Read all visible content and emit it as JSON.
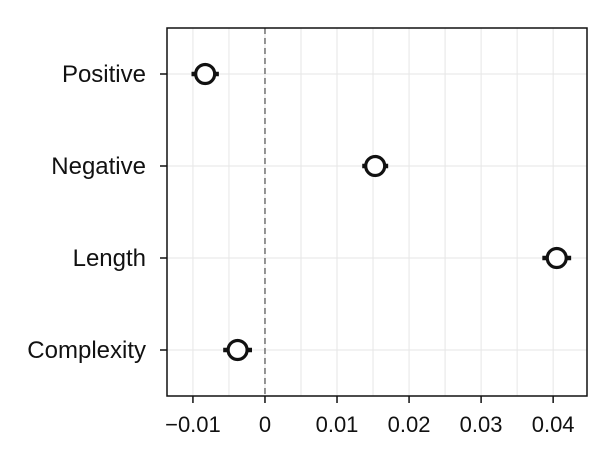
{
  "chart_data": {
    "type": "scatter",
    "orientation": "horizontal",
    "categories": [
      "Positive",
      "Negative",
      "Length",
      "Complexity"
    ],
    "series": [
      {
        "values": [
          -0.0083,
          0.0153,
          0.0405,
          -0.0038
        ],
        "ci_low": [
          -0.0102,
          0.0135,
          0.0385,
          -0.0058
        ],
        "ci_high": [
          -0.0064,
          0.0171,
          0.0425,
          -0.0018
        ]
      }
    ],
    "xticks": [
      -0.01,
      0,
      0.01,
      0.02,
      0.03,
      0.04
    ],
    "xtick_labels": [
      "−0.01",
      "0",
      "0.01",
      "0.02",
      "0.03",
      "0.04"
    ],
    "xlim": [
      -0.0136,
      0.0447
    ],
    "reference_line": 0,
    "grid": true,
    "marker": "open-circle",
    "xlabel": "",
    "ylabel": "",
    "title": ""
  }
}
